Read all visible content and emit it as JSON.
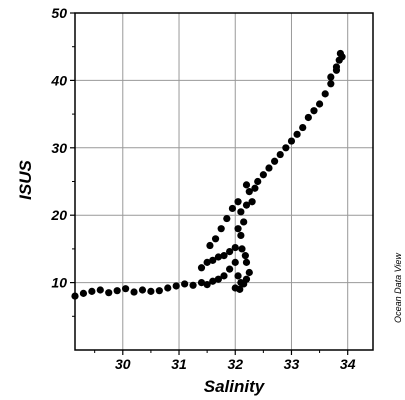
{
  "chart_data": {
    "type": "scatter",
    "title": "",
    "xlabel": "Salinity",
    "ylabel": "ISUS",
    "xlim": [
      29.15,
      34.45
    ],
    "ylim": [
      0,
      50
    ],
    "xticks": [
      30,
      31,
      32,
      33,
      34
    ],
    "yticks": [
      10,
      20,
      30,
      40,
      50
    ],
    "xtick_labels": [
      "30",
      "31",
      "32",
      "33",
      "34"
    ],
    "ytick_labels": [
      "10",
      "20",
      "30",
      "40",
      "50"
    ],
    "grid": true,
    "legend": "none",
    "marker_color": "#000000",
    "watermark": "Ocean Data View",
    "series": [
      {
        "values": [
          [
            29.15,
            8.0
          ],
          [
            29.3,
            8.4
          ],
          [
            29.45,
            8.7
          ],
          [
            29.6,
            8.9
          ],
          [
            29.75,
            8.5
          ],
          [
            29.9,
            8.8
          ],
          [
            30.05,
            9.1
          ],
          [
            30.2,
            8.6
          ],
          [
            30.35,
            8.9
          ],
          [
            30.5,
            8.7
          ],
          [
            30.65,
            8.8
          ],
          [
            30.8,
            9.2
          ],
          [
            30.95,
            9.5
          ],
          [
            31.1,
            9.8
          ],
          [
            31.25,
            9.6
          ],
          [
            31.4,
            10.0
          ],
          [
            31.5,
            9.7
          ],
          [
            31.6,
            10.2
          ],
          [
            31.7,
            10.5
          ],
          [
            31.4,
            12.2
          ],
          [
            31.5,
            13.0
          ],
          [
            31.6,
            13.3
          ],
          [
            31.7,
            13.8
          ],
          [
            31.8,
            14.0
          ],
          [
            31.9,
            14.6
          ],
          [
            32.0,
            15.2
          ],
          [
            31.55,
            15.5
          ],
          [
            31.65,
            16.5
          ],
          [
            31.75,
            18.0
          ],
          [
            31.85,
            19.5
          ],
          [
            31.95,
            21.0
          ],
          [
            32.05,
            22.0
          ],
          [
            31.8,
            11.0
          ],
          [
            31.9,
            12.0
          ],
          [
            32.0,
            13.0
          ],
          [
            32.05,
            11.0
          ],
          [
            32.1,
            10.0
          ],
          [
            32.0,
            9.2
          ],
          [
            32.08,
            9.0
          ],
          [
            32.15,
            9.8
          ],
          [
            32.2,
            10.5
          ],
          [
            32.25,
            11.5
          ],
          [
            32.05,
            18.0
          ],
          [
            32.1,
            17.0
          ],
          [
            32.15,
            19.0
          ],
          [
            32.12,
            15.0
          ],
          [
            32.18,
            14.0
          ],
          [
            32.2,
            13.0
          ],
          [
            32.1,
            20.5
          ],
          [
            32.2,
            21.5
          ],
          [
            32.3,
            22.0
          ],
          [
            32.25,
            23.5
          ],
          [
            32.35,
            24.0
          ],
          [
            32.2,
            24.5
          ],
          [
            32.4,
            25.0
          ],
          [
            32.5,
            26.0
          ],
          [
            32.6,
            27.0
          ],
          [
            32.7,
            28.0
          ],
          [
            32.8,
            29.0
          ],
          [
            32.9,
            30.0
          ],
          [
            33.0,
            31.0
          ],
          [
            33.1,
            32.0
          ],
          [
            33.2,
            33.0
          ],
          [
            33.3,
            34.5
          ],
          [
            33.4,
            35.5
          ],
          [
            33.5,
            36.5
          ],
          [
            33.6,
            38.0
          ],
          [
            33.7,
            39.5
          ],
          [
            33.8,
            41.5
          ],
          [
            33.85,
            43.0
          ],
          [
            33.87,
            44.0
          ],
          [
            33.9,
            43.5
          ],
          [
            33.8,
            42.0
          ],
          [
            33.7,
            40.5
          ]
        ]
      }
    ]
  }
}
